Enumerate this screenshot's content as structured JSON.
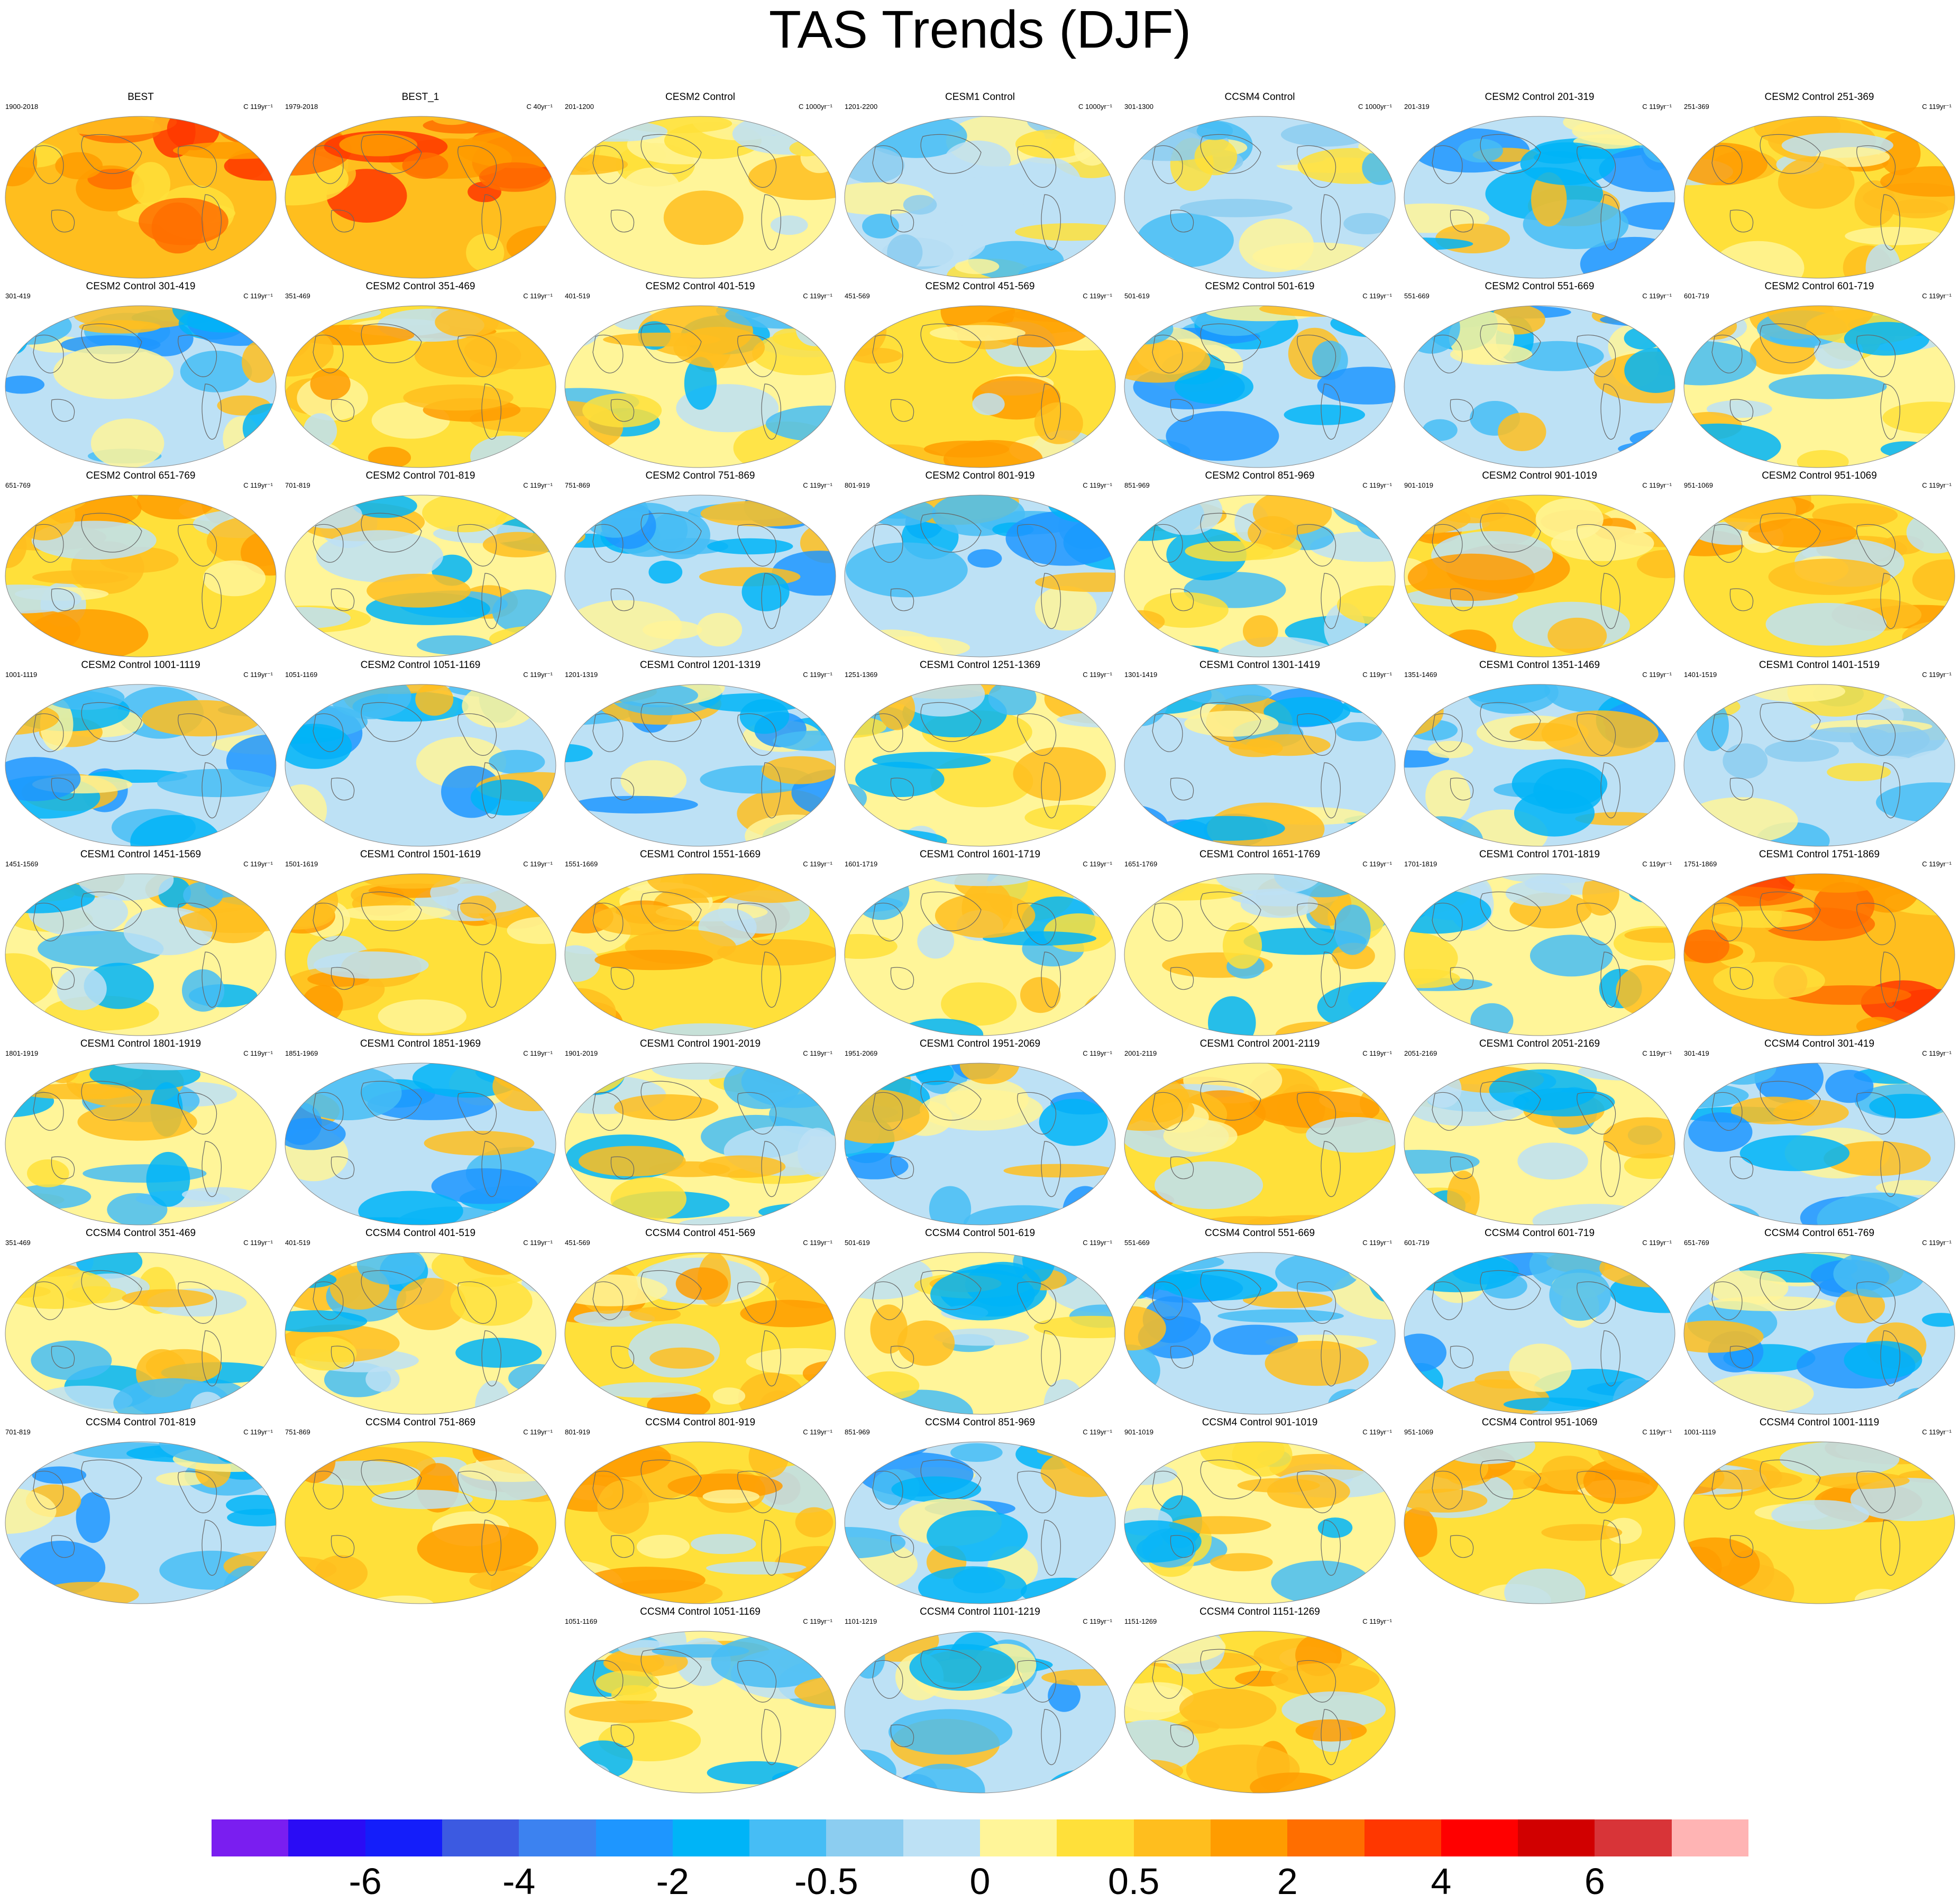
{
  "title": "TAS Trends (DJF)",
  "chart_data": {
    "type": "heatmap",
    "title": "TAS Trends (DJF)",
    "projection": "Robinson (Pacific-centered)",
    "panels": [
      {
        "title": "BEST",
        "years": "1900-2018",
        "units": "C 119yr⁻¹",
        "pattern": "warm-strong"
      },
      {
        "title": "BEST_1",
        "years": "1979-2018",
        "units": "C 40yr⁻¹",
        "pattern": "warm-strong"
      },
      {
        "title": "CESM2 Control",
        "years": "201-1200",
        "units": "C 1000yr⁻¹",
        "pattern": "warm-weak"
      },
      {
        "title": "CESM1 Control",
        "years": "1201-2200",
        "units": "C 1000yr⁻¹",
        "pattern": "cool-weak"
      },
      {
        "title": "CCSM4 Control",
        "years": "301-1300",
        "units": "C 1000yr⁻¹",
        "pattern": "cool-weak"
      },
      {
        "title": "CESM2 Control 201-319",
        "years": "201-319",
        "units": "C 119yr⁻¹",
        "pattern": "cool"
      },
      {
        "title": "CESM2 Control 251-369",
        "years": "251-369",
        "units": "C 119yr⁻¹",
        "pattern": "warm"
      },
      {
        "title": "CESM2 Control 301-419",
        "years": "301-419",
        "units": "C 119yr⁻¹",
        "pattern": "cool"
      },
      {
        "title": "CESM2 Control 351-469",
        "years": "351-469",
        "units": "C 119yr⁻¹",
        "pattern": "warm"
      },
      {
        "title": "CESM2 Control 401-519",
        "years": "401-519",
        "units": "C 119yr⁻¹",
        "pattern": "mixed"
      },
      {
        "title": "CESM2 Control 451-569",
        "years": "451-569",
        "units": "C 119yr⁻¹",
        "pattern": "warm"
      },
      {
        "title": "CESM2 Control 501-619",
        "years": "501-619",
        "units": "C 119yr⁻¹",
        "pattern": "cool"
      },
      {
        "title": "CESM2 Control 551-669",
        "years": "551-669",
        "units": "C 119yr⁻¹",
        "pattern": "cool"
      },
      {
        "title": "CESM2 Control 601-719",
        "years": "601-719",
        "units": "C 119yr⁻¹",
        "pattern": "mixed"
      },
      {
        "title": "CESM2 Control 651-769",
        "years": "651-769",
        "units": "C 119yr⁻¹",
        "pattern": "warm"
      },
      {
        "title": "CESM2 Control 701-819",
        "years": "701-819",
        "units": "C 119yr⁻¹",
        "pattern": "mixed"
      },
      {
        "title": "CESM2 Control 751-869",
        "years": "751-869",
        "units": "C 119yr⁻¹",
        "pattern": "cool"
      },
      {
        "title": "CESM2 Control 801-919",
        "years": "801-919",
        "units": "C 119yr⁻¹",
        "pattern": "cool"
      },
      {
        "title": "CESM2 Control 851-969",
        "years": "851-969",
        "units": "C 119yr⁻¹",
        "pattern": "mixed"
      },
      {
        "title": "CESM2 Control 901-1019",
        "years": "901-1019",
        "units": "C 119yr⁻¹",
        "pattern": "warm"
      },
      {
        "title": "CESM2 Control 951-1069",
        "years": "951-1069",
        "units": "C 119yr⁻¹",
        "pattern": "warm"
      },
      {
        "title": "CESM2 Control 1001-1119",
        "years": "1001-1119",
        "units": "C 119yr⁻¹",
        "pattern": "cool"
      },
      {
        "title": "CESM2 Control 1051-1169",
        "years": "1051-1169",
        "units": "C 119yr⁻¹",
        "pattern": "cool"
      },
      {
        "title": "CESM1 Control 1201-1319",
        "years": "1201-1319",
        "units": "C 119yr⁻¹",
        "pattern": "cool"
      },
      {
        "title": "CESM1 Control 1251-1369",
        "years": "1251-1369",
        "units": "C 119yr⁻¹",
        "pattern": "mixed"
      },
      {
        "title": "CESM1 Control 1301-1419",
        "years": "1301-1419",
        "units": "C 119yr⁻¹",
        "pattern": "cool"
      },
      {
        "title": "CESM1 Control 1351-1469",
        "years": "1351-1469",
        "units": "C 119yr⁻¹",
        "pattern": "cool"
      },
      {
        "title": "CESM1 Control 1401-1519",
        "years": "1401-1519",
        "units": "C 119yr⁻¹",
        "pattern": "cool-weak"
      },
      {
        "title": "CESM1 Control 1451-1569",
        "years": "1451-1569",
        "units": "C 119yr⁻¹",
        "pattern": "mixed"
      },
      {
        "title": "CESM1 Control 1501-1619",
        "years": "1501-1619",
        "units": "C 119yr⁻¹",
        "pattern": "warm"
      },
      {
        "title": "CESM1 Control 1551-1669",
        "years": "1551-1669",
        "units": "C 119yr⁻¹",
        "pattern": "warm"
      },
      {
        "title": "CESM1 Control 1601-1719",
        "years": "1601-1719",
        "units": "C 119yr⁻¹",
        "pattern": "mixed"
      },
      {
        "title": "CESM1 Control 1651-1769",
        "years": "1651-1769",
        "units": "C 119yr⁻¹",
        "pattern": "mixed"
      },
      {
        "title": "CESM1 Control 1701-1819",
        "years": "1701-1819",
        "units": "C 119yr⁻¹",
        "pattern": "mixed"
      },
      {
        "title": "CESM1 Control 1751-1869",
        "years": "1751-1869",
        "units": "C 119yr⁻¹",
        "pattern": "warm-strong"
      },
      {
        "title": "CESM1 Control 1801-1919",
        "years": "1801-1919",
        "units": "C 119yr⁻¹",
        "pattern": "mixed"
      },
      {
        "title": "CESM1 Control 1851-1969",
        "years": "1851-1969",
        "units": "C 119yr⁻¹",
        "pattern": "cool"
      },
      {
        "title": "CESM1 Control 1901-2019",
        "years": "1901-2019",
        "units": "C 119yr⁻¹",
        "pattern": "mixed"
      },
      {
        "title": "CESM1 Control 1951-2069",
        "years": "1951-2069",
        "units": "C 119yr⁻¹",
        "pattern": "cool"
      },
      {
        "title": "CESM1 Control 2001-2119",
        "years": "2001-2119",
        "units": "C 119yr⁻¹",
        "pattern": "warm"
      },
      {
        "title": "CESM1 Control 2051-2169",
        "years": "2051-2169",
        "units": "C 119yr⁻¹",
        "pattern": "mixed"
      },
      {
        "title": "CCSM4 Control 301-419",
        "years": "301-419",
        "units": "C 119yr⁻¹",
        "pattern": "cool"
      },
      {
        "title": "CCSM4 Control 351-469",
        "years": "351-469",
        "units": "C 119yr⁻¹",
        "pattern": "mixed"
      },
      {
        "title": "CCSM4 Control 401-519",
        "years": "401-519",
        "units": "C 119yr⁻¹",
        "pattern": "mixed"
      },
      {
        "title": "CCSM4 Control 451-569",
        "years": "451-569",
        "units": "C 119yr⁻¹",
        "pattern": "warm"
      },
      {
        "title": "CCSM4 Control 501-619",
        "years": "501-619",
        "units": "C 119yr⁻¹",
        "pattern": "mixed"
      },
      {
        "title": "CCSM4 Control 551-669",
        "years": "551-669",
        "units": "C 119yr⁻¹",
        "pattern": "cool"
      },
      {
        "title": "CCSM4 Control 601-719",
        "years": "601-719",
        "units": "C 119yr⁻¹",
        "pattern": "cool"
      },
      {
        "title": "CCSM4 Control 651-769",
        "years": "651-769",
        "units": "C 119yr⁻¹",
        "pattern": "cool"
      },
      {
        "title": "CCSM4 Control 701-819",
        "years": "701-819",
        "units": "C 119yr⁻¹",
        "pattern": "cool"
      },
      {
        "title": "CCSM4 Control 751-869",
        "years": "751-869",
        "units": "C 119yr⁻¹",
        "pattern": "warm"
      },
      {
        "title": "CCSM4 Control 801-919",
        "years": "801-919",
        "units": "C 119yr⁻¹",
        "pattern": "warm"
      },
      {
        "title": "CCSM4 Control 851-969",
        "years": "851-969",
        "units": "C 119yr⁻¹",
        "pattern": "cool"
      },
      {
        "title": "CCSM4 Control 901-1019",
        "years": "901-1019",
        "units": "C 119yr⁻¹",
        "pattern": "mixed"
      },
      {
        "title": "CCSM4 Control 951-1069",
        "years": "951-1069",
        "units": "C 119yr⁻¹",
        "pattern": "warm"
      },
      {
        "title": "CCSM4 Control 1001-1119",
        "years": "1001-1119",
        "units": "C 119yr⁻¹",
        "pattern": "warm"
      },
      {
        "title": "CCSM4 Control 1051-1169",
        "years": "1051-1169",
        "units": "C 119yr⁻¹",
        "pattern": "mixed"
      },
      {
        "title": "CCSM4 Control 1101-1219",
        "years": "1101-1219",
        "units": "C 119yr⁻¹",
        "pattern": "cool"
      },
      {
        "title": "CCSM4 Control 1151-1269",
        "years": "1151-1269",
        "units": "C 119yr⁻¹",
        "pattern": "warm"
      }
    ],
    "colorbar": {
      "levels": [
        -6,
        -5,
        -4,
        -3,
        -2,
        -1,
        -0.5,
        -0.25,
        0,
        0.25,
        0.5,
        1,
        2,
        3,
        4,
        5,
        6
      ],
      "labels": [
        "-6",
        "-4",
        "-2",
        "-0.5",
        "0",
        "0.5",
        "2",
        "4",
        "6"
      ],
      "label_levels": [
        -6,
        -4,
        -2,
        -0.5,
        0,
        0.5,
        2,
        4,
        6
      ],
      "colors": [
        "#7a1ef0",
        "#2a0cf5",
        "#141efa",
        "#3c5ae1",
        "#3c82f0",
        "#1e96ff",
        "#00b4f7",
        "#46bdf5",
        "#8ccdf0",
        "#bde1f5",
        "#fff599",
        "#ffe03a",
        "#ffbe1e",
        "#ff9c00",
        "#ff6e00",
        "#ff3700",
        "#ff0000",
        "#d10000",
        "#d83438",
        "#ffb4b4"
      ]
    }
  }
}
